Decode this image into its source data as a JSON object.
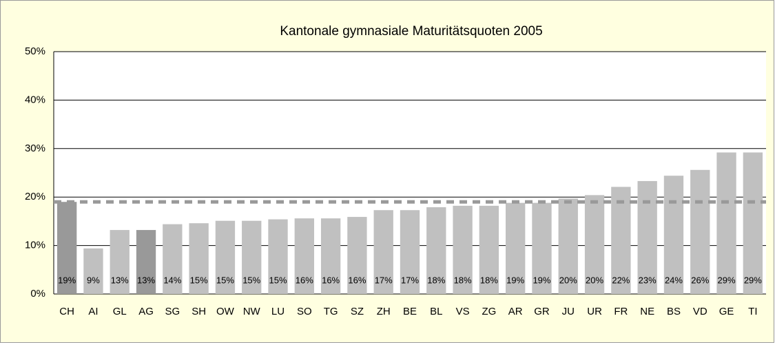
{
  "chart_data": {
    "type": "bar",
    "title": "Kantonale gymnasiale Maturitätsquoten 2005",
    "categories": [
      "CH",
      "AI",
      "GL",
      "AG",
      "SG",
      "SH",
      "OW",
      "NW",
      "LU",
      "SO",
      "TG",
      "SZ",
      "ZH",
      "BE",
      "BL",
      "VS",
      "ZG",
      "AR",
      "GR",
      "JU",
      "UR",
      "FR",
      "NE",
      "BS",
      "VD",
      "GE",
      "TI"
    ],
    "values": [
      19.0,
      9.4,
      13.2,
      13.2,
      14.4,
      14.6,
      15.1,
      15.1,
      15.4,
      15.6,
      15.6,
      15.9,
      17.3,
      17.3,
      17.9,
      18.2,
      18.2,
      18.8,
      18.8,
      19.7,
      20.4,
      22.1,
      23.3,
      24.4,
      25.6,
      29.2,
      29.2
    ],
    "value_labels": [
      "19%",
      "9%",
      "13%",
      "13%",
      "14%",
      "15%",
      "15%",
      "15%",
      "15%",
      "16%",
      "16%",
      "16%",
      "17%",
      "17%",
      "18%",
      "18%",
      "18%",
      "19%",
      "19%",
      "20%",
      "20%",
      "22%",
      "23%",
      "24%",
      "26%",
      "29%",
      "29%"
    ],
    "colors": [
      "#999999",
      "#c0c0c0",
      "#c0c0c0",
      "#999999",
      "#c0c0c0",
      "#c0c0c0",
      "#c0c0c0",
      "#c0c0c0",
      "#c0c0c0",
      "#c0c0c0",
      "#c0c0c0",
      "#c0c0c0",
      "#c0c0c0",
      "#c0c0c0",
      "#c0c0c0",
      "#c0c0c0",
      "#c0c0c0",
      "#c0c0c0",
      "#c0c0c0",
      "#c0c0c0",
      "#c0c0c0",
      "#c0c0c0",
      "#c0c0c0",
      "#c0c0c0",
      "#c0c0c0",
      "#c0c0c0",
      "#c0c0c0"
    ],
    "reference_line": {
      "value": 19.0,
      "color": "#999999"
    },
    "ylim": [
      0,
      50
    ],
    "yticks": [
      {
        "value": 0,
        "label": "0%"
      },
      {
        "value": 10,
        "label": "10%"
      },
      {
        "value": 20,
        "label": "20%"
      },
      {
        "value": 30,
        "label": "30%"
      },
      {
        "value": 40,
        "label": "40%"
      },
      {
        "value": 50,
        "label": "50%"
      }
    ],
    "grid": true
  }
}
